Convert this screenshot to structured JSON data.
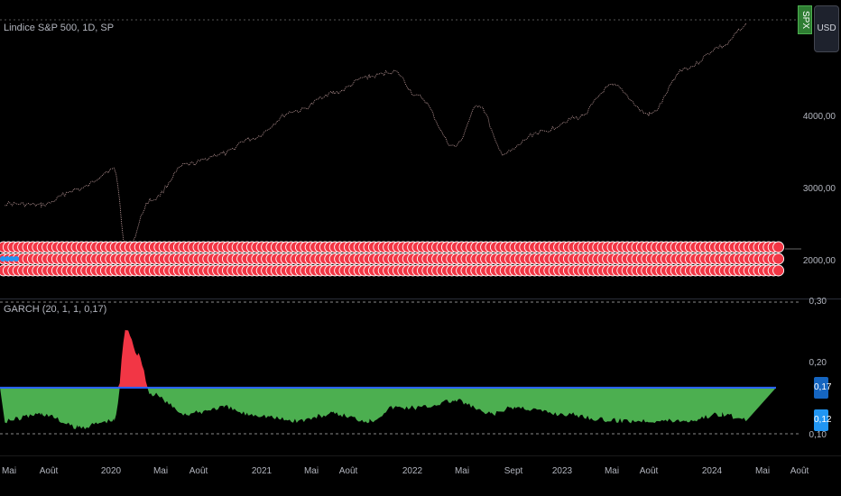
{
  "main": {
    "title": "Lindice S&P 500, 1D, SP",
    "symbol_badge": "SPX",
    "currency_button": "USD",
    "price_axis": [
      "4000,00",
      "3000,00",
      "2000,00"
    ]
  },
  "indicator": {
    "title": "GARCH (20, 1, 1, 0,17)",
    "axis_labels": [
      "0,30",
      "0,20",
      "0,10"
    ],
    "threshold_value": "0,17",
    "current_value": "0,12"
  },
  "time_axis": [
    "Mai",
    "Août",
    "2020",
    "Mai",
    "Août",
    "2021",
    "Mai",
    "Août",
    "2022",
    "Mai",
    "Sept",
    "2023",
    "Mai",
    "Août",
    "2024",
    "Mai",
    "Août"
  ],
  "colors": {
    "price_line": "#c9a4a4",
    "marker_fill": "#f23645",
    "marker_edge": "#ffffff",
    "marker_alt": "#2196f3",
    "below_threshold_fill": "#4caf50",
    "above_threshold_fill": "#f23645",
    "threshold_line": "#2962ff",
    "background": "#000000"
  },
  "chart_data": [
    {
      "type": "line",
      "title": "Lindice S&P 500, 1D, SP",
      "x": [
        "2019-05",
        "2019-08",
        "2019-11",
        "2020-02",
        "2020-03",
        "2020-05",
        "2020-08",
        "2020-11",
        "2021-01",
        "2021-05",
        "2021-08",
        "2021-11",
        "2022-01",
        "2022-03",
        "2022-06",
        "2022-08",
        "2022-10",
        "2023-01",
        "2023-04",
        "2023-07",
        "2023-10",
        "2024-01",
        "2024-04",
        "2024-06"
      ],
      "series": [
        {
          "values": [
            2900,
            2880,
            3100,
            3380,
            2250,
            2950,
            3450,
            3600,
            3800,
            4200,
            4450,
            4680,
            4750,
            4400,
            3700,
            4280,
            3600,
            3900,
            4100,
            4550,
            4150,
            4800,
            5100,
            5400
          ]
        }
      ],
      "ylim": [
        1900,
        5500
      ]
    },
    {
      "type": "area",
      "title": "GARCH (20, 1, 1, 0,17)",
      "x": [
        "2019-05",
        "2019-08",
        "2019-11",
        "2020-02",
        "2020-03",
        "2020-04",
        "2020-05",
        "2020-08",
        "2020-11",
        "2021-01",
        "2021-05",
        "2021-08",
        "2021-11",
        "2022-01",
        "2022-03",
        "2022-06",
        "2022-09",
        "2022-11",
        "2023-03",
        "2023-07",
        "2023-10",
        "2024-01",
        "2024-04",
        "2024-06"
      ],
      "series": [
        {
          "values": [
            0.12,
            0.13,
            0.11,
            0.12,
            0.26,
            0.22,
            0.16,
            0.13,
            0.14,
            0.13,
            0.12,
            0.13,
            0.12,
            0.14,
            0.14,
            0.15,
            0.13,
            0.14,
            0.13,
            0.12,
            0.12,
            0.12,
            0.13,
            0.12
          ]
        }
      ],
      "threshold": 0.17,
      "ylim": [
        0.08,
        0.3
      ]
    }
  ]
}
